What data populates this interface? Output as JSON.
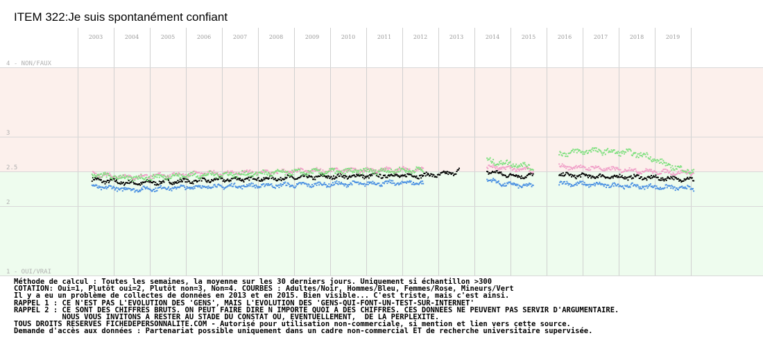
{
  "chart_data": {
    "type": "scatter",
    "title": "ITEM 322:Je suis spontanément confiant",
    "x_tick_labels": [
      "2003",
      "2004",
      "2005",
      "2006",
      "2007",
      "2008",
      "2009",
      "2010",
      "2011",
      "2012",
      "2013",
      "2014",
      "2015",
      "2016",
      "2017",
      "2018",
      "2019"
    ],
    "y_tick_labels": [
      {
        "value": 4,
        "label": "4 - NON/FAUX"
      },
      {
        "value": 3,
        "label": "3"
      },
      {
        "value": 2.5,
        "label": "2.5"
      },
      {
        "value": 2,
        "label": "2"
      },
      {
        "value": 1,
        "label": "1 - OUI/VRAI"
      }
    ],
    "ylim": [
      1,
      4
    ],
    "xlim": [
      2002.5,
      2020.5
    ],
    "grid": true,
    "background_bands": [
      {
        "from": 2.5,
        "to": 4,
        "color": "#fcf0ec"
      },
      {
        "from": 1,
        "to": 2.5,
        "color": "#eefcee"
      }
    ],
    "gaps": [
      [
        2013.1,
        2013.85
      ],
      [
        2015.15,
        2015.85
      ]
    ],
    "series": [
      {
        "name": "Adultes",
        "color": "#000000",
        "segments": [
          {
            "x": [
              2002.9,
              2004.0,
              2005.0,
              2006.0,
              2007.0,
              2008.0,
              2009.0,
              2010.0,
              2011.0,
              2012.0,
              2012.5,
              2012.9,
              2013.1
            ],
            "y": [
              2.38,
              2.33,
              2.35,
              2.37,
              2.39,
              2.4,
              2.42,
              2.43,
              2.44,
              2.44,
              2.45,
              2.48,
              2.52
            ]
          },
          {
            "x": [
              2013.85,
              2014.3,
              2014.7,
              2015.0,
              2015.15
            ],
            "y": [
              2.5,
              2.46,
              2.43,
              2.44,
              2.44
            ]
          },
          {
            "x": [
              2015.85,
              2016.3,
              2016.8,
              2017.3,
              2017.8,
              2018.3,
              2018.8,
              2019.3,
              2019.6
            ],
            "y": [
              2.45,
              2.44,
              2.43,
              2.42,
              2.42,
              2.41,
              2.4,
              2.39,
              2.38
            ]
          }
        ]
      },
      {
        "name": "Hommes",
        "color": "#4a90e2",
        "segments": [
          {
            "x": [
              2002.9,
              2004.0,
              2005.0,
              2006.0,
              2007.0,
              2008.0,
              2009.0,
              2010.0,
              2011.0,
              2012.0,
              2012.1
            ],
            "y": [
              2.28,
              2.24,
              2.26,
              2.28,
              2.29,
              2.3,
              2.31,
              2.32,
              2.33,
              2.34,
              2.32
            ]
          },
          {
            "x": [
              2013.85,
              2014.3,
              2014.7,
              2015.0,
              2015.15
            ],
            "y": [
              2.38,
              2.32,
              2.3,
              2.29,
              2.28
            ]
          },
          {
            "x": [
              2015.85,
              2016.3,
              2016.8,
              2017.3,
              2017.8,
              2018.3,
              2018.8,
              2019.3,
              2019.6
            ],
            "y": [
              2.33,
              2.32,
              2.31,
              2.3,
              2.29,
              2.28,
              2.27,
              2.26,
              2.25
            ]
          }
        ]
      },
      {
        "name": "Femmes",
        "color": "#f0a0c8",
        "segments": [
          {
            "x": [
              2002.9,
              2004.0,
              2005.0,
              2006.0,
              2007.0,
              2008.0,
              2009.0,
              2010.0,
              2011.0,
              2012.0,
              2012.1
            ],
            "y": [
              2.46,
              2.42,
              2.45,
              2.47,
              2.48,
              2.49,
              2.51,
              2.51,
              2.52,
              2.53,
              2.51
            ]
          },
          {
            "x": [
              2013.85,
              2014.3,
              2014.7,
              2015.0,
              2015.15
            ],
            "y": [
              2.56,
              2.55,
              2.53,
              2.52,
              2.5
            ]
          },
          {
            "x": [
              2015.85,
              2016.3,
              2016.8,
              2017.3,
              2017.8,
              2018.3,
              2018.8,
              2019.3,
              2019.6
            ],
            "y": [
              2.57,
              2.56,
              2.55,
              2.53,
              2.52,
              2.5,
              2.49,
              2.48,
              2.49
            ]
          }
        ]
      },
      {
        "name": "Mineurs",
        "color": "#80e080",
        "segments": [
          {
            "x": [
              2002.9,
              2004.0,
              2005.0,
              2006.0,
              2007.0,
              2008.0,
              2009.0,
              2010.0,
              2011.0,
              2012.0,
              2012.1
            ],
            "y": [
              2.45,
              2.4,
              2.43,
              2.45,
              2.46,
              2.48,
              2.49,
              2.5,
              2.51,
              2.52,
              2.5
            ]
          },
          {
            "x": [
              2013.85,
              2014.3,
              2014.7,
              2015.0,
              2015.15
            ],
            "y": [
              2.65,
              2.62,
              2.6,
              2.57,
              2.55
            ]
          },
          {
            "x": [
              2015.85,
              2016.3,
              2016.8,
              2017.3,
              2017.8,
              2018.3,
              2018.8,
              2019.3,
              2019.6
            ],
            "y": [
              2.75,
              2.78,
              2.8,
              2.78,
              2.77,
              2.72,
              2.6,
              2.52,
              2.5
            ]
          }
        ]
      }
    ]
  },
  "notes": [
    "Méthode de calcul : Toutes les semaines, la moyenne sur les 30 derniers jours. Uniquement si échantillon >300",
    "COTATION: Oui=1, Plutôt oui=2, Plutôt non=3, Non=4. COURBES : Adultes/Noir, Hommes/Bleu, Femmes/Rose, Mineurs/Vert",
    "Il y a eu un problème de collectes de données en 2013 et en 2015. Bien visible... C'est triste, mais c'est ainsi.",
    "RAPPEL 1 : CE N'EST PAS L'EVOLUTION DES 'GENS', MAIS L'EVOLUTION DES 'GENS-QUI-FONT-UN-TEST-SUR-INTERNET'",
    "RAPPEL 2 : CE SONT DES CHIFFRES BRUTS. ON PEUT FAIRE DIRE N IMPORTE QUOI A DES CHIFFRES. CES DONNEES NE PEUVENT PAS SERVIR D'ARGUMENTAIRE.",
    "           NOUS VOUS INVITONS A RESTER AU STADE DU CONSTAT OU, EVENTUELLEMENT,  DE LA PERPLEXITE.",
    "TOUS DROITS RESERVES FICHEDEPERSONNALITE.COM - Autorisé pour utilisation non-commerciale, si mention et lien vers cette source.",
    "Demande d'accès aux données : Partenariat possible uniquement dans un cadre non-commercial ET de recherche universitaire supervisée."
  ]
}
